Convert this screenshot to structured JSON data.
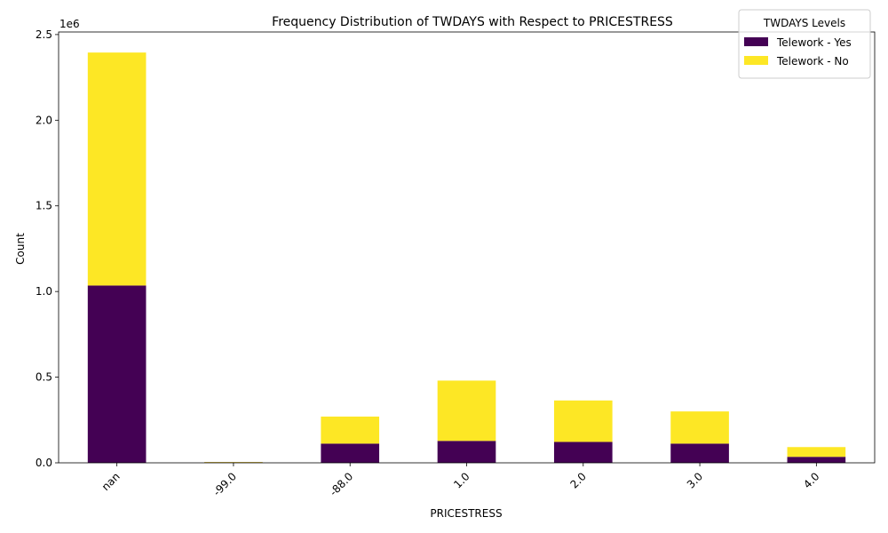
{
  "chart_data": {
    "type": "bar",
    "stacked": true,
    "title": "Frequency Distribution of TWDAYS with Respect to PRICESTRESS",
    "xlabel": "PRICESTRESS",
    "ylabel": "Count",
    "y_offset_text": "1e6",
    "categories": [
      "nan",
      "-99.0",
      "-88.0",
      "1.0",
      "2.0",
      "3.0",
      "4.0"
    ],
    "ylim": [
      0,
      2515000
    ],
    "y_ticks": [
      0,
      500000,
      1000000,
      1500000,
      2000000,
      2500000
    ],
    "y_tick_labels": [
      "0.0",
      "0.5",
      "1.0",
      "1.5",
      "2.0",
      "2.5"
    ],
    "series": [
      {
        "name": "Telework - Yes",
        "color": "#440154",
        "values": [
          1035000,
          3000,
          112000,
          128000,
          122000,
          112000,
          35000
        ]
      },
      {
        "name": "Telework - No",
        "color": "#fde725",
        "values": [
          1360000,
          2000,
          158000,
          352000,
          242000,
          188000,
          57000
        ]
      }
    ],
    "legend": {
      "title": "TWDAYS Levels",
      "placement": "top-right"
    },
    "grid": false
  }
}
